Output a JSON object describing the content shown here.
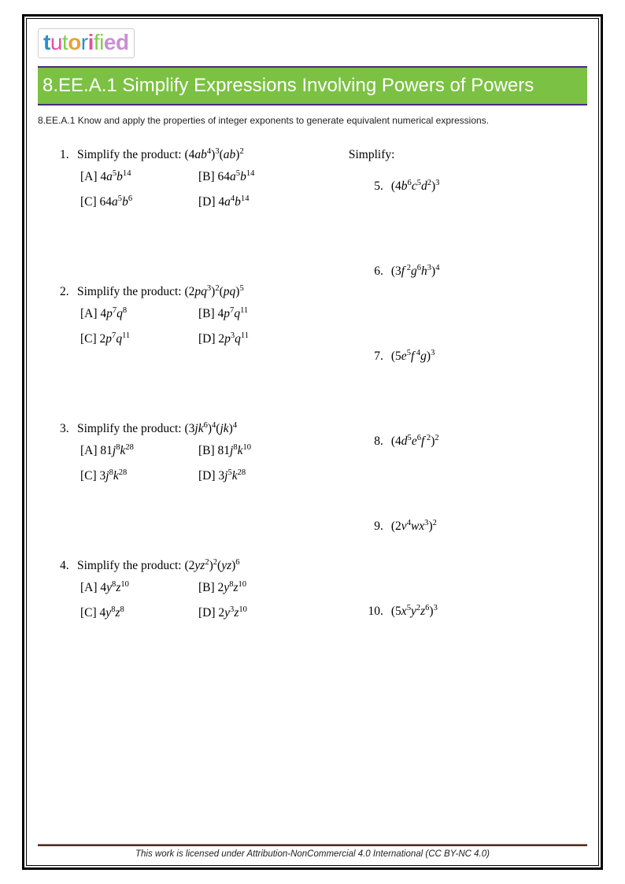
{
  "logo": {
    "t1": "t",
    "u": "u",
    "t2": "t",
    "o1": "o",
    "r": "r",
    "i": "i",
    "f": "fi",
    "ed": "ed"
  },
  "banner_title": "8.EE.A.1 Simplify Expressions Involving Powers of Powers",
  "standard_text": "8.EE.A.1 Know and apply the properties of integer exponents to generate equivalent numerical expressions.",
  "left": {
    "q1": {
      "num": "1.",
      "prompt": "Simplify the product:  ",
      "expr_html": "(4<span class='it'>ab</span><sup>4</sup>)<sup>3</sup>(<span class='it'>ab</span>)<sup>2</sup>",
      "A": "4<span class='it'>a</span><sup>5</sup><span class='it'>b</span><sup>14</sup>",
      "B": "64<span class='it'>a</span><sup>5</sup><span class='it'>b</span><sup>14</sup>",
      "C": "64<span class='it'>a</span><sup>5</sup><span class='it'>b</span><sup>6</sup>",
      "D": "4<span class='it'>a</span><sup>4</sup><span class='it'>b</span><sup>14</sup>"
    },
    "q2": {
      "num": "2.",
      "prompt": "Simplify the product:  ",
      "expr_html": "(2<span class='it'>pq</span><sup>3</sup>)<sup>2</sup>(<span class='it'>pq</span>)<sup>5</sup>",
      "A": "4<span class='it'>p</span><sup>7</sup><span class='it'>q</span><sup>8</sup>",
      "B": "4<span class='it'>p</span><sup>7</sup><span class='it'>q</span><sup>11</sup>",
      "C": "2<span class='it'>p</span><sup>7</sup><span class='it'>q</span><sup>11</sup>",
      "D": "2<span class='it'>p</span><sup>3</sup><span class='it'>q</span><sup>11</sup>"
    },
    "q3": {
      "num": "3.",
      "prompt": "Simplify the product:  ",
      "expr_html": "(3<span class='it'>jk</span><sup>6</sup>)<sup>4</sup>(<span class='it'>jk</span>)<sup>4</sup>",
      "A": "81<span class='it'>j</span><sup>8</sup><span class='it'>k</span><sup>28</sup>",
      "B": "81<span class='it'>j</span><sup>8</sup><span class='it'>k</span><sup>10</sup>",
      "C": "3<span class='it'>j</span><sup>8</sup><span class='it'>k</span><sup>28</sup>",
      "D": "3<span class='it'>j</span><sup>5</sup><span class='it'>k</span><sup>28</sup>"
    },
    "q4": {
      "num": "4.",
      "prompt": "Simplify the product:  ",
      "expr_html": "(2<span class='it'>yz</span><sup>2</sup>)<sup>2</sup>(<span class='it'>yz</span>)<sup>6</sup>",
      "A": "4<span class='it'>y</span><sup>8</sup><span class='it'>z</span><sup>10</sup>",
      "B": "2<span class='it'>y</span><sup>8</sup><span class='it'>z</span><sup>10</sup>",
      "C": "4<span class='it'>y</span><sup>8</sup><span class='it'>z</span><sup>8</sup>",
      "D": "2<span class='it'>y</span><sup>3</sup><span class='it'>z</span><sup>10</sup>"
    }
  },
  "right": {
    "head": "Simplify:",
    "q5": {
      "num": "5.",
      "expr_html": "(4<span class='it'>b</span><sup>6</sup><span class='it'>c</span><sup>5</sup><span class='it'>d</span><sup>2</sup>)<sup>3</sup>"
    },
    "q6": {
      "num": "6.",
      "expr_html": "(3<span class='it'>f</span><sup> 2</sup><span class='it'>g</span><sup>6</sup><span class='it'>h</span><sup>3</sup>)<sup>4</sup>"
    },
    "q7": {
      "num": "7.",
      "expr_html": "(5<span class='it'>e</span><sup>5</sup><span class='it'>f</span><sup> 4</sup><span class='it'>g</span>)<sup>3</sup>"
    },
    "q8": {
      "num": "8.",
      "expr_html": "(4<span class='it'>d</span><sup>5</sup><span class='it'>e</span><sup>6</sup><span class='it'>f</span><sup> 2</sup>)<sup>2</sup>"
    },
    "q9": {
      "num": "9.",
      "expr_html": "(2<span class='it'>v</span><sup>4</sup><span class='it'>wx</span><sup>3</sup>)<sup>2</sup>"
    },
    "q10": {
      "num": "10.",
      "expr_html": "(5<span class='it'>x</span><sup>5</sup><span class='it'>y</span><sup>2</sup><span class='it'>z</span><sup>6</sup>)<sup>3</sup>"
    }
  },
  "footer": "This work is licensed under Attribution-NonCommercial 4.0 International (CC BY-NC 4.0)",
  "labels": {
    "A": "[A]  ",
    "B": "[B]  ",
    "C": "[C]  ",
    "D": "[D]  "
  }
}
